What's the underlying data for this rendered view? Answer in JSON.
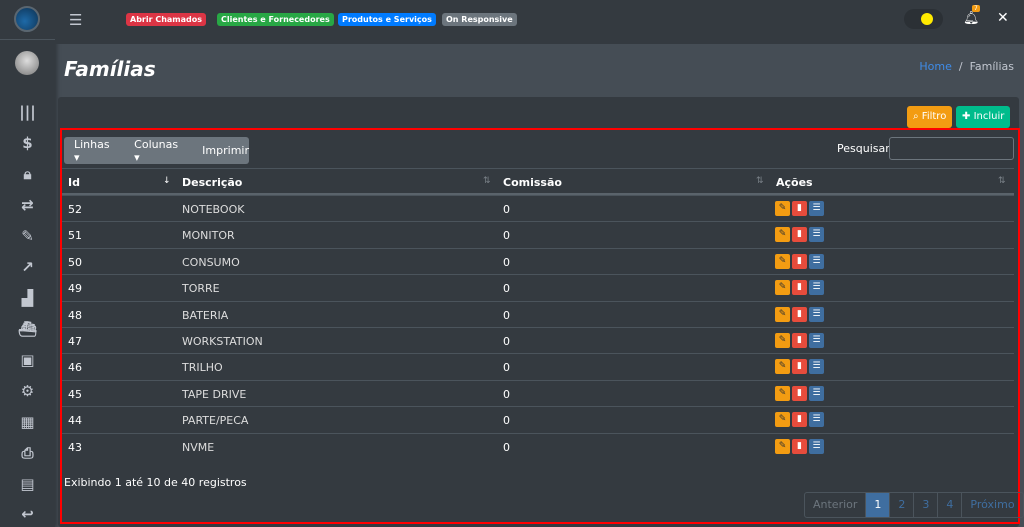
{
  "topbar": {
    "badges": [
      {
        "label": "Abrir Chamados",
        "color": "#dc3545"
      },
      {
        "label": "Clientes e Fornecedores",
        "color": "#28a745"
      },
      {
        "label": "Produtos e Serviços",
        "color": "#007bff"
      },
      {
        "label": "On Responsive",
        "color": "#6c757d"
      }
    ],
    "notification_count": "7"
  },
  "sidebar": {
    "icons": [
      "barcode-icon",
      "dollar-icon",
      "shopping-bag-icon",
      "handshake-icon",
      "edit-icon",
      "chart-line-icon",
      "industry-icon",
      "ship-icon",
      "box-icon",
      "cogs-icon",
      "table-icon",
      "print-icon",
      "file-icon",
      "undo-icon"
    ]
  },
  "page": {
    "title": "Famílias",
    "breadcrumb": {
      "home": "Home",
      "current": "Famílias"
    }
  },
  "toolbar": {
    "filter": "Filtro",
    "add": "Incluir",
    "lines": "Linhas",
    "columns": "Colunas",
    "print": "Imprimir",
    "search_label": "Pesquisar",
    "search_value": ""
  },
  "table": {
    "headers": [
      "Id",
      "Descrição",
      "Comissão",
      "Ações"
    ],
    "rows": [
      [
        "52",
        "NOTEBOOK",
        "0"
      ],
      [
        "51",
        "MONITOR",
        "0"
      ],
      [
        "50",
        "CONSUMO",
        "0"
      ],
      [
        "49",
        "TORRE",
        "0"
      ],
      [
        "48",
        "BATERIA",
        "0"
      ],
      [
        "47",
        "WORKSTATION",
        "0"
      ],
      [
        "46",
        "TRILHO",
        "0"
      ],
      [
        "45",
        "TAPE DRIVE",
        "0"
      ],
      [
        "44",
        "PARTE/PECA",
        "0"
      ],
      [
        "43",
        "NVME",
        "0"
      ]
    ]
  },
  "footer": {
    "info": "Exibindo 1 até 10 de 40 registros",
    "pagination": {
      "prev": "Anterior",
      "pages": [
        "1",
        "2",
        "3",
        "4"
      ],
      "current": "1",
      "next": "Próximo"
    }
  }
}
